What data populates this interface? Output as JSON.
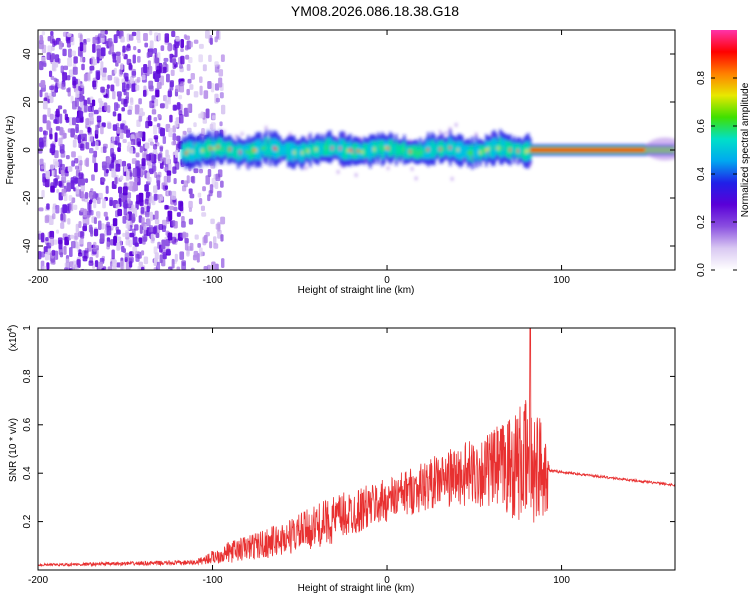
{
  "title": "YM08.2026.086.18.38.G18",
  "colors": {
    "accent": "#e83030",
    "background": "#ffffff"
  },
  "chart_data": [
    {
      "type": "heatmap",
      "name": "spectrogram",
      "xlabel": "Height of straight line (km)",
      "ylabel": "Frequency (Hz)",
      "xlim": [
        -200,
        165
      ],
      "ylim": [
        -50,
        50
      ],
      "xticks": [
        -200,
        -100,
        0,
        100
      ],
      "yticks": [
        -40,
        -20,
        0,
        20,
        40
      ],
      "colorbar": {
        "label": "Normalized spectral amplitude",
        "range": [
          0.0,
          1.0
        ],
        "ticks": [
          0.0,
          0.2,
          0.4,
          0.6,
          0.8
        ],
        "tick_labels": [
          "0.0",
          "0.2",
          "0.4",
          "0.6",
          "0.8"
        ],
        "colormap": [
          "#ffffff",
          "#d9c8f2",
          "#8a4fe0",
          "#5a00d8",
          "#2020e8",
          "#00a8f0",
          "#00e0c8",
          "#40e000",
          "#e8e800",
          "#ff8000",
          "#ff0000",
          "#ff33aa"
        ]
      },
      "regions": [
        {
          "kind": "noise",
          "x_range": [
            -200,
            -118
          ],
          "freq_range": [
            -50,
            50
          ]
        },
        {
          "kind": "scattered",
          "x_range": [
            -118,
            -95
          ],
          "freq_range": [
            -50,
            50
          ]
        },
        {
          "kind": "signal_band",
          "x_range": [
            -118,
            82
          ],
          "center_hz": 0,
          "half_width_hz": 5
        },
        {
          "kind": "strong_line",
          "x_range": [
            82,
            165
          ],
          "center_hz": 0,
          "half_width_hz": 1.5
        }
      ]
    },
    {
      "type": "line",
      "name": "snr",
      "xlabel": "Height of straight line (km)",
      "ylabel": "SNR (10 * v/v)",
      "y_multiplier_label": "(x10",
      "y_multiplier_exp": "4",
      "y_multiplier_close": ")",
      "xlim": [
        -200,
        165
      ],
      "ylim": [
        0,
        1.0
      ],
      "xticks": [
        -200,
        -100,
        0,
        100
      ],
      "yticks": [
        0.2,
        0.4,
        0.6,
        0.8,
        1.0
      ],
      "color": "#e83030",
      "envelope": [
        {
          "x": -200,
          "base": 0.02,
          "spread": 0.01
        },
        {
          "x": -110,
          "base": 0.03,
          "spread": 0.02
        },
        {
          "x": -90,
          "base": 0.07,
          "spread": 0.09
        },
        {
          "x": -60,
          "base": 0.12,
          "spread": 0.14
        },
        {
          "x": -30,
          "base": 0.2,
          "spread": 0.2
        },
        {
          "x": 0,
          "base": 0.28,
          "spread": 0.18
        },
        {
          "x": 30,
          "base": 0.36,
          "spread": 0.22
        },
        {
          "x": 60,
          "base": 0.4,
          "spread": 0.32
        },
        {
          "x": 82,
          "base": 0.42,
          "spread": 0.55
        },
        {
          "x": 92,
          "base": 0.4,
          "spread": 0.35
        },
        {
          "x": 93,
          "base": 0.41,
          "spread": 0.01
        },
        {
          "x": 165,
          "base": 0.35,
          "spread": 0.01
        }
      ],
      "peak": {
        "x": 82,
        "y": 1.0
      }
    }
  ]
}
